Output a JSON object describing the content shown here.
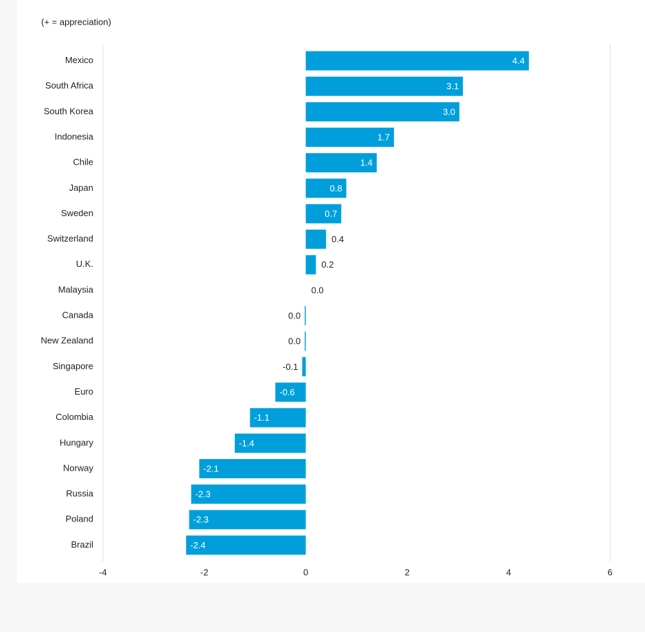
{
  "chart_data": {
    "type": "barh",
    "subtitle": "(+ = appreciation)",
    "categories": [
      "Mexico",
      "South Africa",
      "South Korea",
      "Indonesia",
      "Chile",
      "Japan",
      "Sweden",
      "Switzerland",
      "U.K.",
      "Malaysia",
      "Canada",
      "New Zealand",
      "Singapore",
      "Euro",
      "Colombia",
      "Hungary",
      "Norway",
      "Russia",
      "Poland",
      "Brazil"
    ],
    "values": [
      4.4,
      3.1,
      3.03,
      1.74,
      1.4,
      0.8,
      0.7,
      0.4,
      0.2,
      0,
      -0.02,
      -0.02,
      -0.07,
      -0.6,
      -1.1,
      -1.4,
      -2.1,
      -2.26,
      -2.3,
      -2.36
    ],
    "value_labels": [
      "4.4",
      "3.1",
      "3.0",
      "1.7",
      "1.4",
      "0.8",
      "0.7",
      "0.4",
      "0.2",
      "0.0",
      "0.0",
      "0.0",
      "-0.1",
      "-0.6",
      "-1.1",
      "-1.4",
      "-2.1",
      "-2.3",
      "-2.3",
      "-2.4"
    ],
    "color": "#009fdb",
    "xlim": [
      -4,
      6
    ],
    "xticks": [
      -4,
      -2,
      0,
      2,
      4,
      6
    ],
    "grid": false
  }
}
